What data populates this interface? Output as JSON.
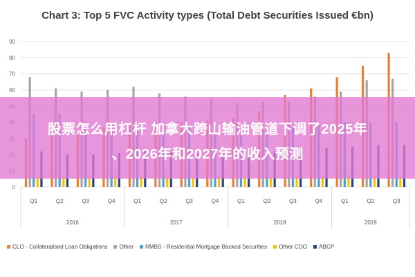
{
  "chart_data": {
    "type": "bar",
    "title": "Chart 3: Top 5 FVC Activity types (Total Debt Securities Issued €bn)",
    "xlabel": "",
    "ylabel": "",
    "ylim": [
      0,
      90
    ],
    "yticks": [
      0,
      10,
      20,
      30,
      40,
      50,
      60,
      70,
      80,
      90
    ],
    "grid": true,
    "legend_position": "bottom",
    "categories": [
      "Q1",
      "Q2",
      "Q3",
      "Q4",
      "Q1",
      "Q2",
      "Q3",
      "Q4",
      "Q1",
      "Q2",
      "Q3",
      "Q4",
      "Q1",
      "Q2",
      "Q3"
    ],
    "groups": [
      {
        "label": "2016",
        "count": 4
      },
      {
        "label": "2017",
        "count": 4
      },
      {
        "label": "2018",
        "count": 4
      },
      {
        "label": "2019",
        "count": 3
      }
    ],
    "series": [
      {
        "name": "CLO - Collateralised Loan Obligations",
        "color": "#ED7D31",
        "values": [
          30,
          32,
          35,
          37,
          38,
          37,
          40,
          41,
          43,
          47,
          57,
          61,
          68,
          75,
          83
        ]
      },
      {
        "name": "Other",
        "color": "#A5A5A5",
        "values": [
          68,
          61,
          59,
          60,
          62,
          58,
          56,
          55,
          52,
          53,
          53,
          56,
          59,
          66,
          67
        ]
      },
      {
        "name": "RMBS - Residential Mortgage Backed Securities",
        "color": "#4A9FD5",
        "values": [
          45,
          45,
          40,
          40,
          40,
          38,
          37,
          37,
          36,
          36,
          37,
          40,
          40,
          40,
          40
        ]
      },
      {
        "name": "Other CDO",
        "color": "#FFC000",
        "values": [
          6,
          6,
          6,
          6,
          6,
          6,
          6,
          6,
          6,
          6,
          6,
          6,
          6,
          6,
          6
        ]
      },
      {
        "name": "ABCP",
        "color": "#264478",
        "values": [
          22,
          20,
          20,
          21,
          23,
          22,
          21,
          21,
          22,
          22,
          22,
          24,
          25,
          26,
          26
        ]
      }
    ]
  },
  "overlay": {
    "line1": "股票怎么用杠杆 加拿大跨山输油管道下调了2025年",
    "line2": "、2026年和2027年的收入预测"
  }
}
